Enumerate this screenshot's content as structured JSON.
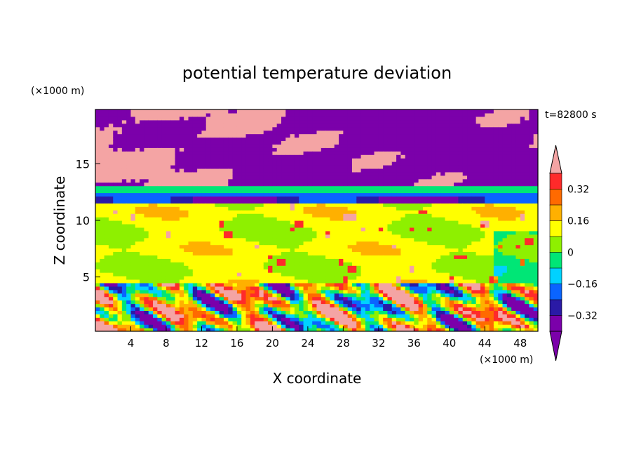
{
  "chart_data": {
    "type": "heatmap",
    "title": "potential temperature deviation",
    "xlabel": "X coordinate",
    "ylabel": "Z coordinate",
    "x_unit": "(×1000 m)",
    "y_unit": "(×1000 m)",
    "time_label": "t=82800 s",
    "xlim": [
      0,
      50
    ],
    "ylim": [
      0.2,
      19.8
    ],
    "x_ticks": [
      4,
      8,
      12,
      16,
      20,
      24,
      28,
      32,
      36,
      40,
      44,
      48
    ],
    "y_ticks": [
      5,
      10,
      15
    ],
    "grid": false,
    "colorbar": {
      "placement": "right",
      "levels": [
        -0.4,
        -0.32,
        -0.24,
        -0.16,
        -0.08,
        0,
        0.08,
        0.16,
        0.24,
        0.32,
        0.4
      ],
      "tick_labels": [
        "0.32",
        "0.16",
        "0",
        "−0.16",
        "−0.32"
      ],
      "tick_values": [
        0.32,
        0.16,
        0,
        -0.16,
        -0.32
      ],
      "colors": [
        "#7b00aa",
        "#2a1aa6",
        "#0a64ff",
        "#00d2ff",
        "#00e676",
        "#8ef000",
        "#ffff00",
        "#ffb000",
        "#ff6a00",
        "#ff2a2a",
        "#f4a4a4"
      ],
      "extend": "both"
    },
    "bands": [
      {
        "z_range": [
          13.1,
          19.8
        ],
        "value": "mixed: upper purple (< -0.4) with pink patches (> 0.4)"
      },
      {
        "z_range": [
          12.6,
          13.1
        ],
        "value": "approx -0.1 to -0.2 (cyan)"
      },
      {
        "z_range": [
          11.4,
          12.6
        ],
        "value": "approx -0.3 (dark blue / blue)"
      },
      {
        "z_range": [
          4.6,
          11.4
        ],
        "value": "approx 0 to 0.08 (green)"
      },
      {
        "z_range": [
          0.2,
          4.6
        ],
        "value": "highly variable, -0.4 to > 0.4"
      }
    ]
  }
}
